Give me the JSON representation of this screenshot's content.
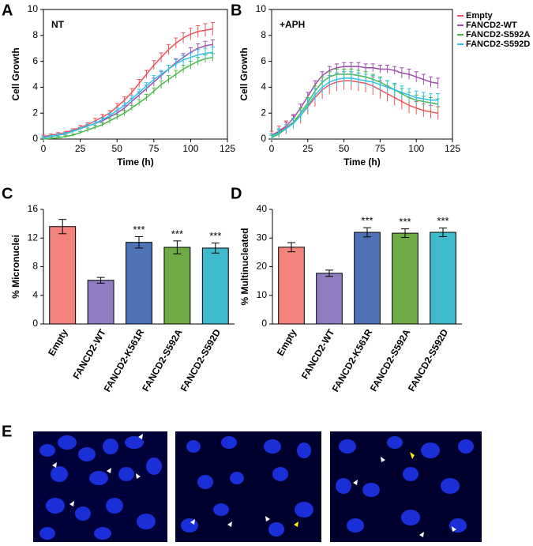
{
  "chart_data": [
    {
      "type": "line",
      "panel_label": "A",
      "title": "NT",
      "x_label": "Time (h)",
      "y_label": "Cell Growth",
      "x": [
        0,
        5,
        10,
        15,
        20,
        25,
        30,
        35,
        40,
        45,
        50,
        55,
        60,
        65,
        70,
        75,
        80,
        85,
        90,
        95,
        100,
        105,
        110,
        115
      ],
      "xlim": [
        0,
        125
      ],
      "xticks": [
        0,
        25,
        50,
        75,
        100,
        125
      ],
      "ylim": [
        0,
        10
      ],
      "yticks": [
        0,
        2,
        4,
        6,
        8,
        10
      ],
      "series": [
        {
          "color": "#f0535a",
          "values": [
            0.2,
            0.3,
            0.4,
            0.5,
            0.7,
            0.9,
            1.1,
            1.4,
            1.7,
            2.0,
            2.5,
            3.0,
            3.6,
            4.3,
            5.0,
            5.7,
            6.3,
            6.9,
            7.4,
            7.8,
            8.1,
            8.3,
            8.4,
            8.5
          ],
          "errors": [
            0.1,
            0.1,
            0.1,
            0.1,
            0.1,
            0.15,
            0.15,
            0.2,
            0.2,
            0.2,
            0.25,
            0.25,
            0.3,
            0.3,
            0.3,
            0.35,
            0.35,
            0.4,
            0.4,
            0.4,
            0.45,
            0.45,
            0.5,
            0.5
          ]
        },
        {
          "color": "#9b4fa6",
          "values": [
            0.1,
            0.2,
            0.3,
            0.4,
            0.6,
            0.8,
            1.0,
            1.2,
            1.4,
            1.7,
            2.0,
            2.4,
            2.9,
            3.4,
            3.9,
            4.4,
            4.9,
            5.4,
            5.9,
            6.3,
            6.7,
            7.0,
            7.2,
            7.3
          ],
          "errors": [
            0.1,
            0.1,
            0.1,
            0.1,
            0.1,
            0.1,
            0.15,
            0.15,
            0.2,
            0.2,
            0.2,
            0.2,
            0.25,
            0.25,
            0.25,
            0.3,
            0.3,
            0.3,
            0.3,
            0.3,
            0.35,
            0.35,
            0.35,
            0.35
          ]
        },
        {
          "color": "#4cb84a",
          "values": [
            0,
            0.05,
            0.1,
            0.2,
            0.3,
            0.5,
            0.7,
            0.9,
            1.1,
            1.4,
            1.7,
            2.0,
            2.4,
            2.8,
            3.2,
            3.7,
            4.2,
            4.6,
            5.0,
            5.4,
            5.7,
            6.0,
            6.2,
            6.3
          ],
          "errors": [
            0.1,
            0.1,
            0.1,
            0.1,
            0.1,
            0.1,
            0.15,
            0.15,
            0.15,
            0.2,
            0.2,
            0.2,
            0.2,
            0.25,
            0.25,
            0.25,
            0.3,
            0.3,
            0.3,
            0.3,
            0.3,
            0.3,
            0.3,
            0.3
          ]
        },
        {
          "color": "#2fc3e8",
          "values": [
            0.1,
            0.2,
            0.3,
            0.4,
            0.6,
            0.8,
            1.0,
            1.2,
            1.5,
            1.8,
            2.2,
            2.6,
            3.1,
            3.6,
            4.1,
            4.6,
            5.0,
            5.4,
            5.8,
            6.1,
            6.3,
            6.5,
            6.6,
            6.7
          ],
          "errors": [
            0.1,
            0.1,
            0.1,
            0.1,
            0.1,
            0.1,
            0.15,
            0.15,
            0.15,
            0.2,
            0.2,
            0.2,
            0.25,
            0.25,
            0.25,
            0.3,
            0.3,
            0.3,
            0.35,
            0.35,
            0.35,
            0.4,
            0.4,
            0.4
          ]
        }
      ]
    },
    {
      "type": "line",
      "panel_label": "B",
      "title": "+APH",
      "x_label": "Time (h)",
      "y_label": "Cell Growth",
      "x": [
        0,
        5,
        10,
        15,
        20,
        25,
        30,
        35,
        40,
        45,
        50,
        55,
        60,
        65,
        70,
        75,
        80,
        85,
        90,
        95,
        100,
        105,
        110,
        115
      ],
      "xlim": [
        0,
        125
      ],
      "xticks": [
        0,
        25,
        50,
        75,
        100,
        125
      ],
      "ylim": [
        0,
        10
      ],
      "yticks": [
        0,
        2,
        4,
        6,
        8,
        10
      ],
      "series": [
        {
          "name": "Empty",
          "color": "#f0535a",
          "values": [
            0.3,
            0.6,
            0.9,
            1.3,
            1.8,
            2.5,
            3.2,
            3.8,
            4.2,
            4.4,
            4.5,
            4.5,
            4.4,
            4.3,
            4.1,
            3.8,
            3.5,
            3.2,
            2.9,
            2.6,
            2.4,
            2.2,
            2.1,
            2.0
          ],
          "errors": [
            0.3,
            0.4,
            0.5,
            0.5,
            0.6,
            0.6,
            0.7,
            0.7,
            0.7,
            0.7,
            0.7,
            0.7,
            0.7,
            0.7,
            0.7,
            0.7,
            0.6,
            0.6,
            0.6,
            0.6,
            0.5,
            0.5,
            0.5,
            0.5
          ]
        },
        {
          "name": "FANCD2-WT",
          "color": "#9b4fa6",
          "values": [
            0.2,
            0.6,
            1.0,
            1.6,
            2.4,
            3.3,
            4.2,
            4.9,
            5.3,
            5.5,
            5.6,
            5.6,
            5.6,
            5.5,
            5.5,
            5.4,
            5.4,
            5.3,
            5.1,
            5.0,
            4.8,
            4.6,
            4.4,
            4.3
          ],
          "errors": [
            0.2,
            0.2,
            0.3,
            0.3,
            0.3,
            0.3,
            0.3,
            0.3,
            0.3,
            0.3,
            0.3,
            0.3,
            0.3,
            0.3,
            0.3,
            0.3,
            0.3,
            0.3,
            0.4,
            0.4,
            0.4,
            0.4,
            0.4,
            0.4
          ]
        },
        {
          "name": "FANCD2-S592A",
          "color": "#4cb84a",
          "values": [
            0.1,
            0.4,
            0.8,
            1.3,
            2.0,
            2.8,
            3.7,
            4.4,
            4.8,
            5.0,
            5.0,
            5.0,
            4.9,
            4.8,
            4.6,
            4.4,
            4.1,
            3.8,
            3.5,
            3.2,
            3.0,
            2.9,
            2.8,
            2.7
          ],
          "errors": [
            0.2,
            0.3,
            0.3,
            0.3,
            0.4,
            0.4,
            0.4,
            0.4,
            0.4,
            0.4,
            0.4,
            0.4,
            0.4,
            0.4,
            0.4,
            0.4,
            0.4,
            0.4,
            0.4,
            0.4,
            0.4,
            0.4,
            0.4,
            0.4
          ]
        },
        {
          "name": "FANCD2-S592D",
          "color": "#2fc3e8",
          "values": [
            0.2,
            0.5,
            0.8,
            1.2,
            1.8,
            2.6,
            3.4,
            4.0,
            4.4,
            4.6,
            4.7,
            4.7,
            4.6,
            4.5,
            4.4,
            4.2,
            4.0,
            3.8,
            3.6,
            3.4,
            3.2,
            3.1,
            3.0,
            3.0
          ],
          "errors": [
            0.2,
            0.3,
            0.3,
            0.4,
            0.4,
            0.5,
            0.5,
            0.5,
            0.5,
            0.5,
            0.5,
            0.5,
            0.5,
            0.5,
            0.5,
            0.5,
            0.5,
            0.5,
            0.5,
            0.5,
            0.5,
            0.5,
            0.5,
            0.5
          ]
        }
      ]
    },
    {
      "type": "bar",
      "panel_label": "C",
      "y_label": "% Micronuclei",
      "categories": [
        "Empty",
        "FANCD2-WT",
        "FANCD2-K561R",
        "FANCD2-S592A",
        "FANCD2-S592D"
      ],
      "values": [
        13.6,
        6.1,
        11.4,
        10.7,
        10.6
      ],
      "errors": [
        1.0,
        0.4,
        0.8,
        0.9,
        0.7
      ],
      "significance": [
        null,
        null,
        "***",
        "***",
        "***"
      ],
      "colors": [
        "#f4837d",
        "#8f7cc0",
        "#4e72b8",
        "#6fab45",
        "#3fb9cc"
      ],
      "ylim": [
        0,
        16
      ],
      "yticks": [
        0,
        4,
        8,
        12,
        16
      ]
    },
    {
      "type": "bar",
      "panel_label": "D",
      "y_label": "% Multinucleated",
      "categories": [
        "Empty",
        "FANCD2-WT",
        "FANCD2-K561R",
        "FANCD2-S592A",
        "FANCD2-S592D"
      ],
      "values": [
        26.8,
        17.7,
        32.0,
        31.7,
        32.0
      ],
      "errors": [
        1.6,
        1.1,
        1.6,
        1.5,
        1.5
      ],
      "significance": [
        null,
        null,
        "***",
        "***",
        "***"
      ],
      "colors": [
        "#f4837d",
        "#8f7cc0",
        "#4e72b8",
        "#6fab45",
        "#3fb9cc"
      ],
      "ylim": [
        0,
        40
      ],
      "yticks": [
        0,
        10,
        20,
        30,
        40
      ]
    }
  ],
  "image_panel": {
    "label": "E"
  }
}
